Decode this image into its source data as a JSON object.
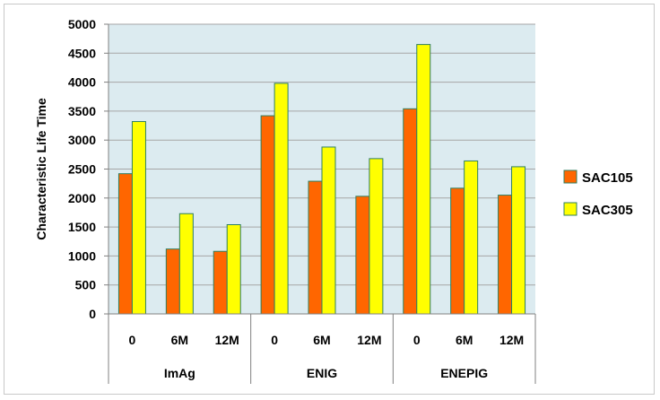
{
  "chart_data": {
    "type": "bar",
    "title": "",
    "xlabel": "",
    "ylabel": "Characteristic Life Time",
    "ylim": [
      0,
      5000
    ],
    "yticks": [
      0,
      500,
      1000,
      1500,
      2000,
      2500,
      3000,
      3500,
      4000,
      4500,
      5000
    ],
    "grid": true,
    "legend_position": "right",
    "groups": [
      {
        "label": "ImAg",
        "categories": [
          "0",
          "6M",
          "12M"
        ]
      },
      {
        "label": "ENIG",
        "categories": [
          "0",
          "6M",
          "12M"
        ]
      },
      {
        "label": "ENEPIG",
        "categories": [
          "0",
          "6M",
          "12M"
        ]
      }
    ],
    "series": [
      {
        "name": "SAC105",
        "color": "#ff6600",
        "values": [
          2420,
          1120,
          1080,
          3420,
          2290,
          2030,
          3540,
          2170,
          2050
        ]
      },
      {
        "name": "SAC305",
        "color": "#ffff00",
        "values": [
          3320,
          1730,
          1540,
          3980,
          2880,
          2680,
          4650,
          2640,
          2540
        ]
      }
    ],
    "plot_background": "#dcebf0",
    "gridline_color": "#a6a6a6"
  }
}
